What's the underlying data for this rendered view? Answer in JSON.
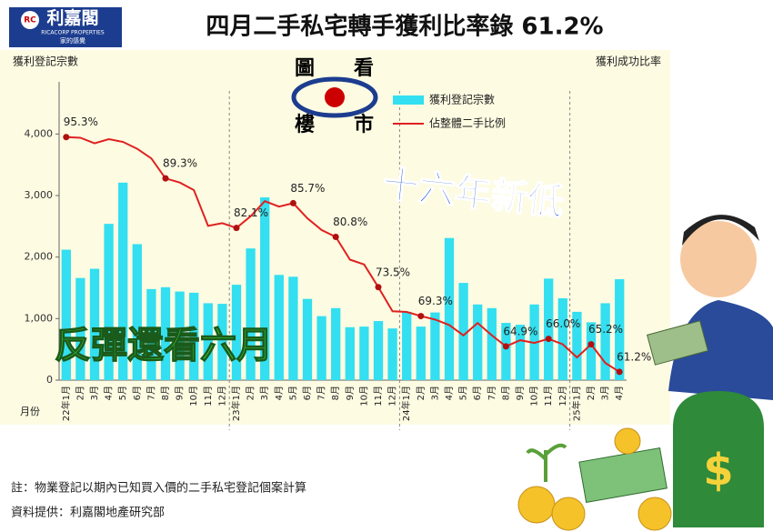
{
  "logo": {
    "name": "利嘉閣",
    "english": "RICACORP PROPERTIES",
    "slogan": "家的感覺",
    "emblem": "RC"
  },
  "column": {
    "chars": [
      "圖",
      "看",
      "樓",
      "市"
    ]
  },
  "chart_data": {
    "type": "bar",
    "title": "四月二手私宅轉手獲利比率錄 61.2%",
    "ylabel": "獲利登記宗數",
    "y2label": "獲利成功比率",
    "xlabel": "月份",
    "annotations": [
      "十六年新低",
      "反彈還看六月"
    ],
    "notes": [
      "註：物業登記以期內已知買入價的二手私宅登記個案計算",
      "資料提供：利嘉閣地產研究部"
    ],
    "categories": [
      "22年1月",
      "2月",
      "3月",
      "4月",
      "5月",
      "6月",
      "7月",
      "8月",
      "9月",
      "10月",
      "11月",
      "12月",
      "23年1月",
      "2月",
      "3月",
      "4月",
      "5月",
      "6月",
      "7月",
      "8月",
      "9月",
      "10月",
      "11月",
      "12月",
      "24年1月",
      "2月",
      "3月",
      "4月",
      "5月",
      "6月",
      "7月",
      "8月",
      "9月",
      "10月",
      "11月",
      "12月",
      "25年1月",
      "2月",
      "3月",
      "4月"
    ],
    "ylim": [
      0,
      4700
    ],
    "yticks": [
      0,
      {
        "value": 1000,
        "label": "1,000"
      },
      {
        "value": 2000,
        "label": "2,000"
      },
      {
        "value": 3000,
        "label": "3,000"
      },
      {
        "value": 4000,
        "label": "4,000"
      }
    ],
    "y2lim": [
      60,
      102
    ],
    "series": [
      {
        "name": "獲利登記宗數",
        "type": "bar",
        "color": "#33dff0",
        "values": [
          2120,
          1660,
          1810,
          2540,
          3210,
          2210,
          1480,
          1510,
          1440,
          1420,
          1250,
          1240,
          1550,
          2140,
          2970,
          1710,
          1680,
          1320,
          1040,
          1170,
          860,
          870,
          960,
          840,
          1110,
          870,
          1100,
          2310,
          1580,
          1230,
          1170,
          930,
          900,
          1230,
          1650,
          1330,
          1110,
          940,
          1250,
          1640
        ]
      },
      {
        "name": "佔整體二手比例",
        "type": "line",
        "axis": "y2",
        "color": "#e02020",
        "values": [
          95.3,
          95.2,
          94.4,
          95.0,
          94.6,
          93.6,
          92.2,
          89.3,
          88.7,
          87.6,
          82.4,
          82.8,
          82.1,
          83.8,
          86.0,
          85.2,
          85.7,
          83.5,
          81.8,
          80.8,
          77.5,
          76.8,
          73.5,
          70.0,
          69.9,
          69.3,
          68.8,
          68.0,
          66.5,
          68.3,
          66.5,
          64.9,
          65.8,
          65.4,
          66.0,
          65.2,
          63.3,
          65.2,
          62.5,
          61.2
        ],
        "value_labels": [
          "95.3%",
          null,
          null,
          null,
          null,
          null,
          null,
          "89.3%",
          null,
          null,
          null,
          null,
          "82.1%",
          null,
          null,
          null,
          "85.7%",
          null,
          null,
          "80.8%",
          null,
          null,
          "73.5%",
          null,
          null,
          "69.3%",
          null,
          null,
          null,
          null,
          null,
          "64.9%",
          null,
          null,
          "66.0%",
          null,
          null,
          "65.2%",
          null,
          "61.2%"
        ]
      }
    ]
  }
}
